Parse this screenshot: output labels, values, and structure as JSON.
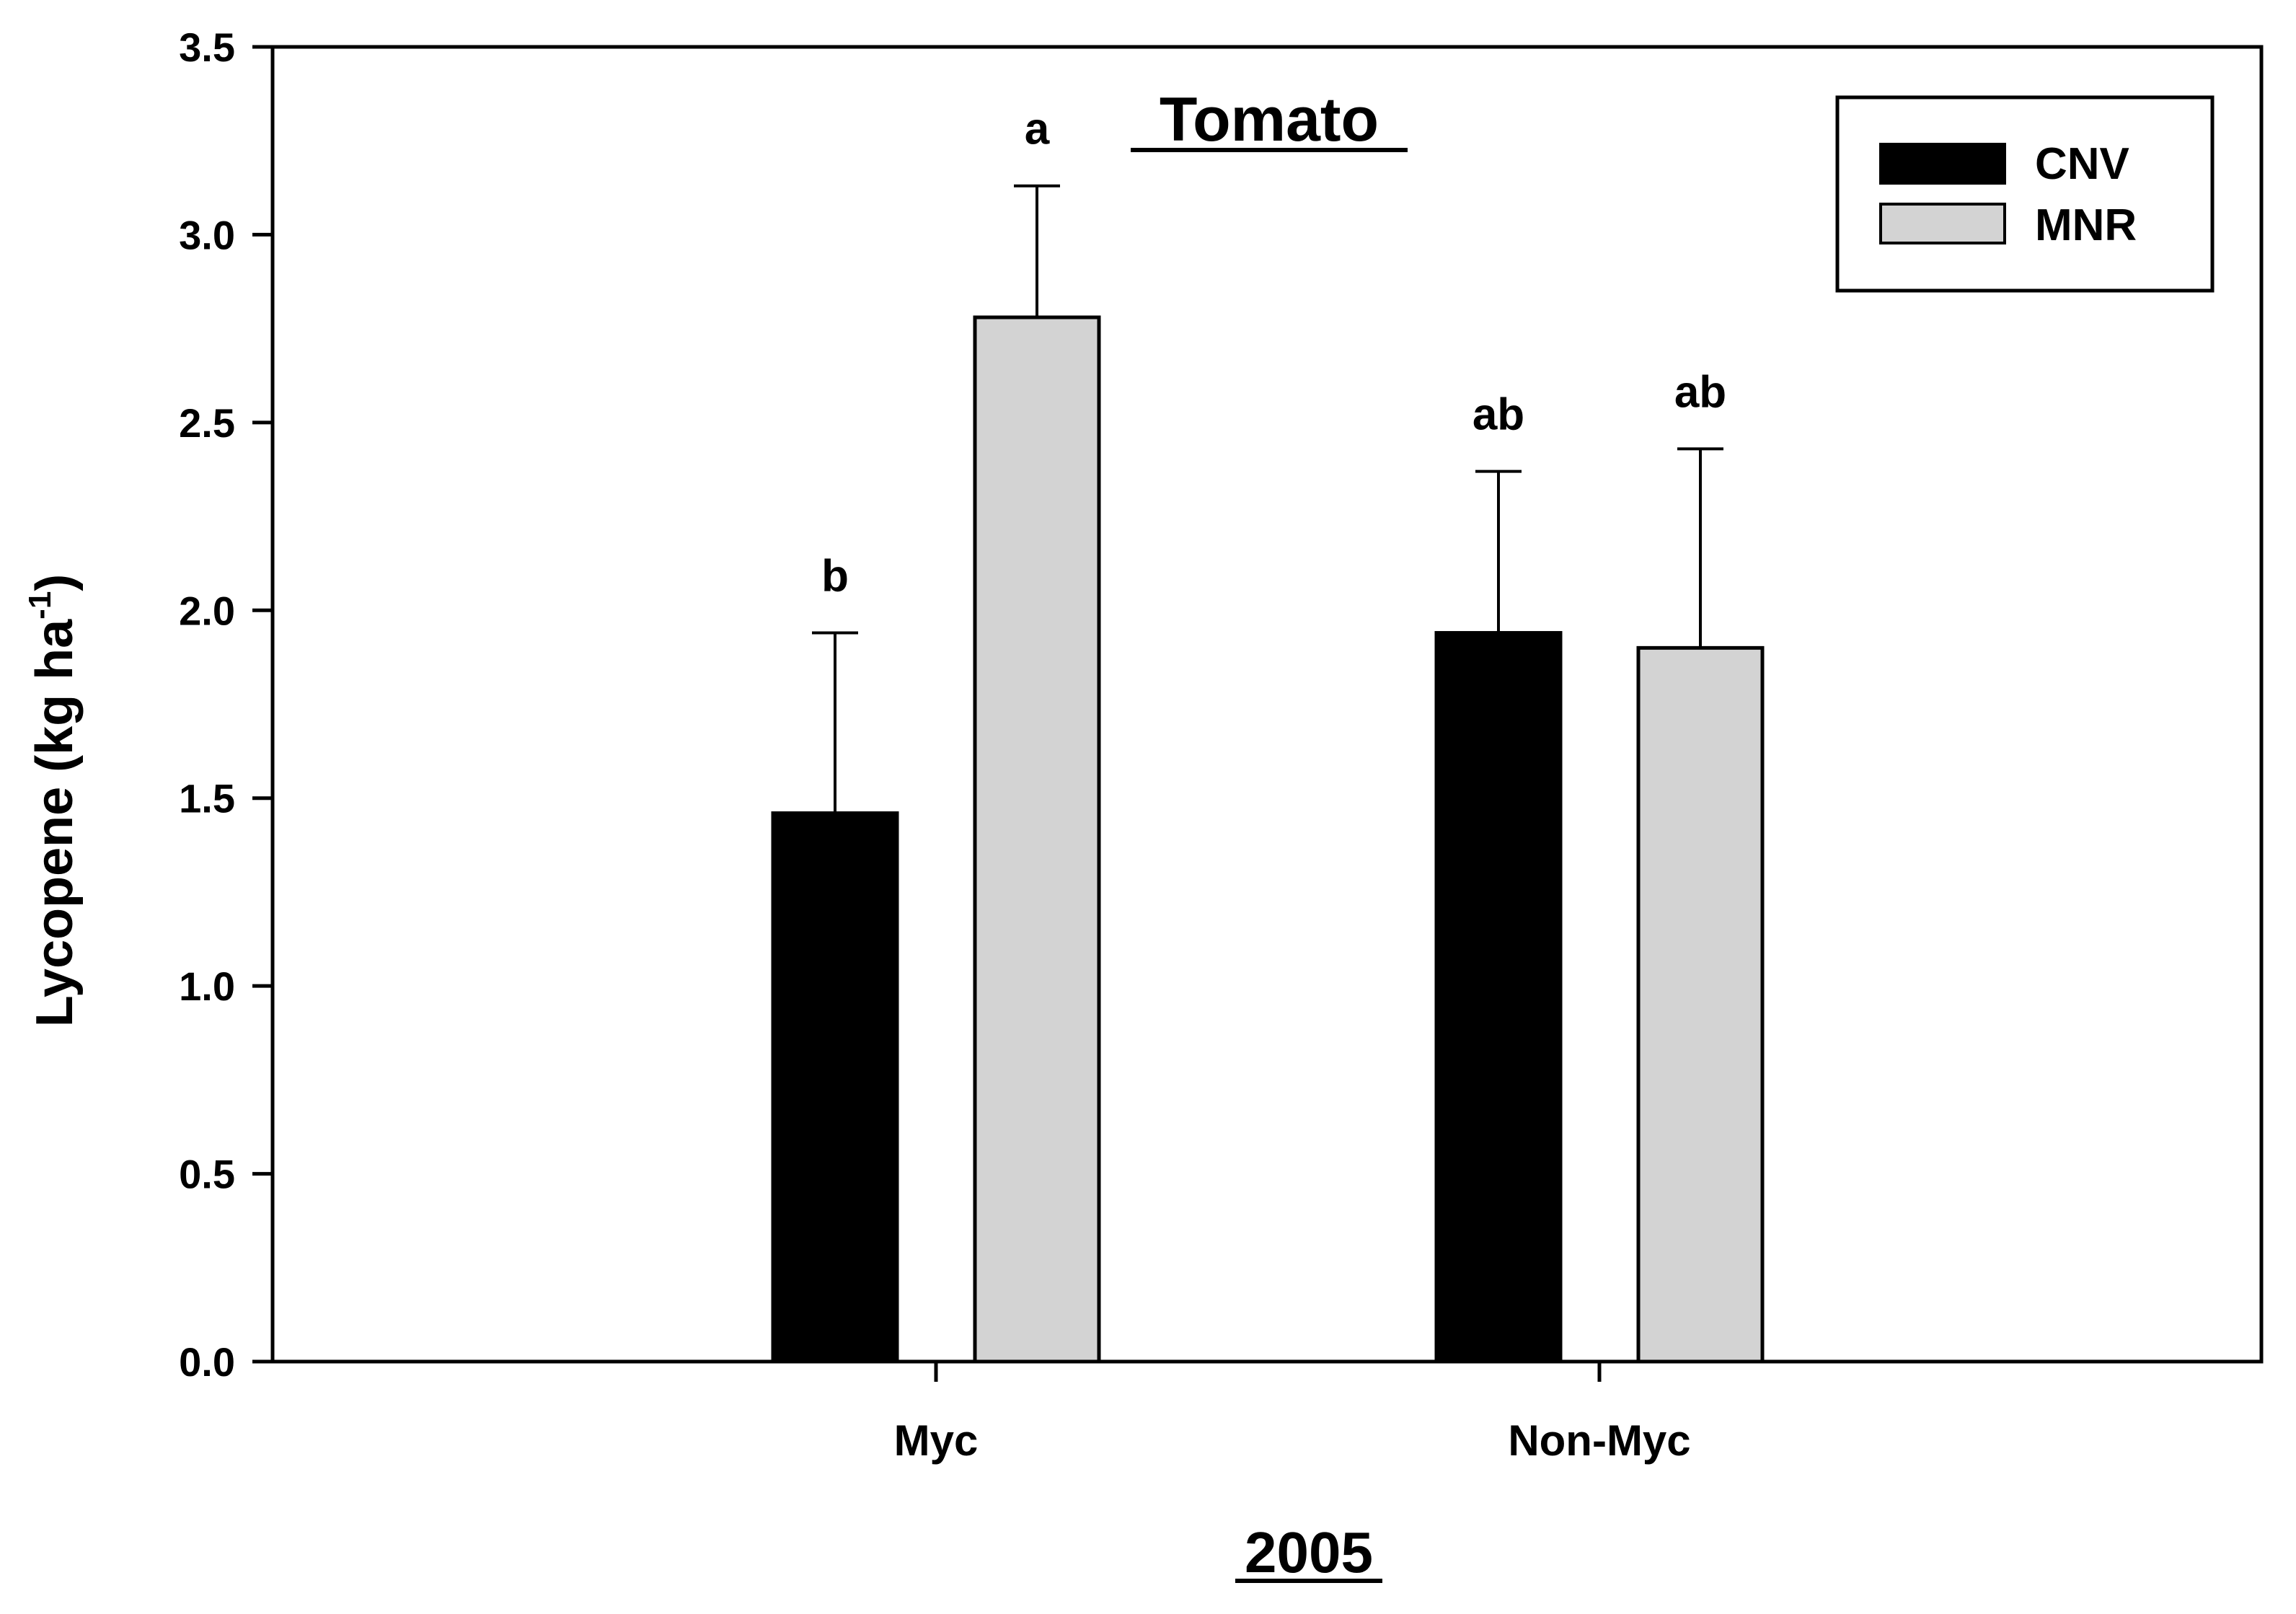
{
  "chart_data": {
    "type": "bar",
    "title": "Tomato",
    "xlabel": "2005",
    "ylabel": "Lycopene (kg ha",
    "ylabel_superscript": "-1",
    "ylabel_close": ")",
    "ylim": [
      0,
      3.5
    ],
    "yticks": [
      "0.0",
      "0.5",
      "1.0",
      "1.5",
      "2.0",
      "2.5",
      "3.0",
      "3.5"
    ],
    "ytick_values": [
      0,
      0.5,
      1.0,
      1.5,
      2.0,
      2.5,
      3.0,
      3.5
    ],
    "categories": [
      "Myc",
      "Non-Myc"
    ],
    "series": [
      {
        "name": "CNV",
        "color": "#000000",
        "values": [
          1.46,
          1.94
        ],
        "error_upper": [
          1.94,
          2.37
        ],
        "labels": [
          "b",
          "ab"
        ]
      },
      {
        "name": "MNR",
        "color": "#d3d3d3",
        "values": [
          2.78,
          1.9
        ],
        "error_upper": [
          3.13,
          2.43
        ],
        "labels": [
          "a",
          "ab"
        ]
      }
    ],
    "legend_position": "top-right",
    "grid": false
  }
}
